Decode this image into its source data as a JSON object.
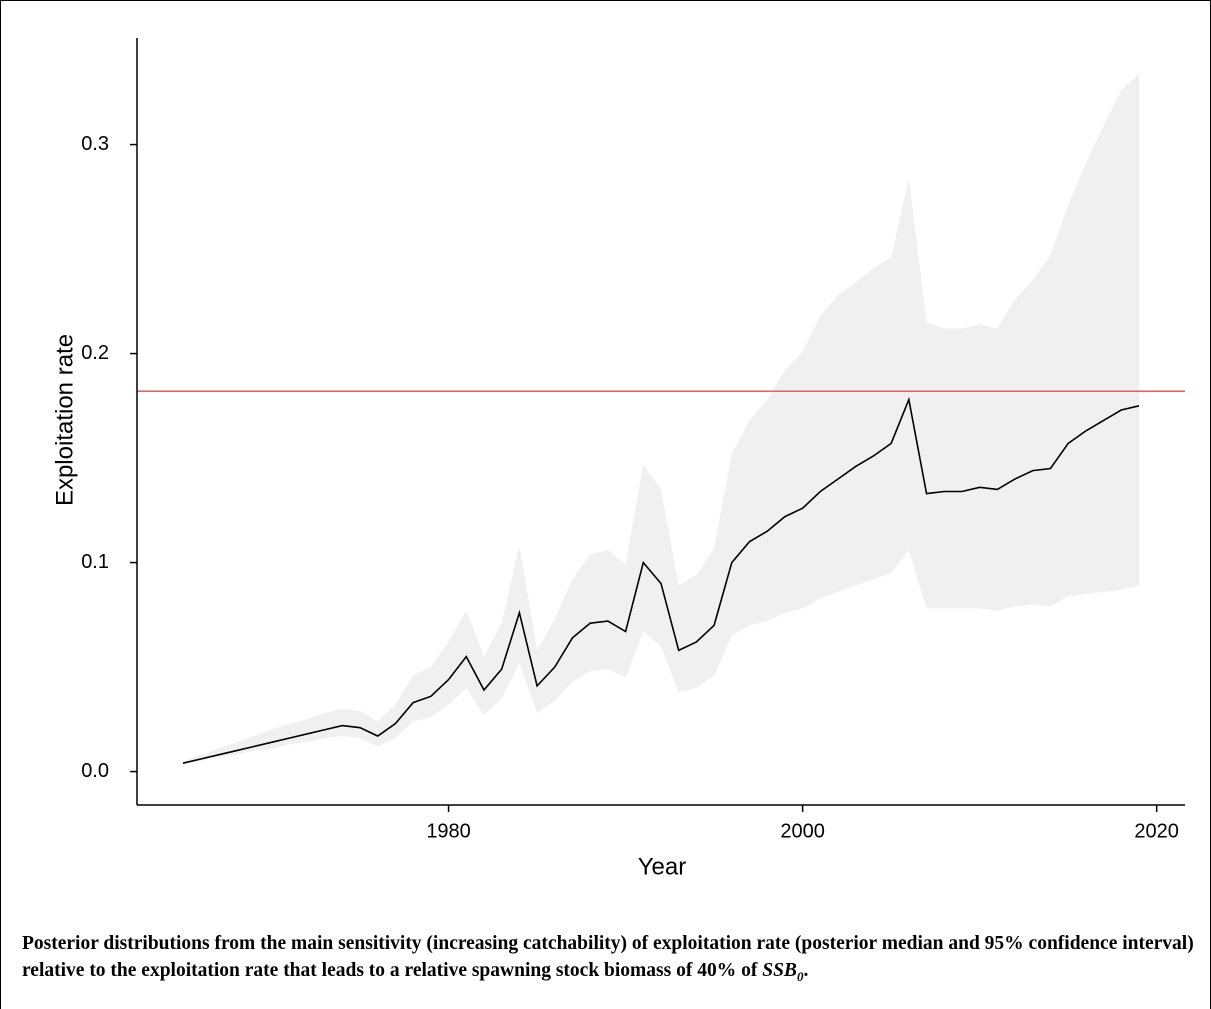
{
  "chart_data": {
    "type": "line",
    "x_label": "Year",
    "y_label": "Exploitation rate",
    "x": [
      1965,
      1966,
      1967,
      1968,
      1969,
      1970,
      1971,
      1972,
      1973,
      1974,
      1975,
      1976,
      1977,
      1978,
      1979,
      1980,
      1981,
      1982,
      1983,
      1984,
      1985,
      1986,
      1987,
      1988,
      1989,
      1990,
      1991,
      1992,
      1993,
      1994,
      1995,
      1996,
      1997,
      1998,
      1999,
      2000,
      2001,
      2002,
      2003,
      2004,
      2005,
      2006,
      2007,
      2008,
      2009,
      2010,
      2011,
      2012,
      2013,
      2014,
      2015,
      2016,
      2017,
      2018,
      2019
    ],
    "values": [
      0.004,
      0.006,
      0.008,
      0.01,
      0.012,
      0.014,
      0.016,
      0.018,
      0.02,
      0.022,
      0.021,
      0.017,
      0.023,
      0.033,
      0.036,
      0.044,
      0.055,
      0.039,
      0.049,
      0.076,
      0.041,
      0.05,
      0.064,
      0.071,
      0.072,
      0.067,
      0.1,
      0.09,
      0.058,
      0.062,
      0.07,
      0.1,
      0.11,
      0.115,
      0.122,
      0.126,
      0.134,
      0.14,
      0.146,
      0.151,
      0.157,
      0.178,
      0.133,
      0.134,
      0.134,
      0.136,
      0.135,
      0.14,
      0.144,
      0.145,
      0.157,
      0.163,
      0.168,
      0.173,
      0.175
    ],
    "lower": [
      0.004,
      0.005,
      0.007,
      0.008,
      0.01,
      0.011,
      0.013,
      0.014,
      0.016,
      0.017,
      0.016,
      0.012,
      0.016,
      0.024,
      0.026,
      0.032,
      0.04,
      0.027,
      0.035,
      0.052,
      0.028,
      0.034,
      0.043,
      0.048,
      0.049,
      0.045,
      0.067,
      0.06,
      0.038,
      0.04,
      0.046,
      0.065,
      0.07,
      0.072,
      0.076,
      0.078,
      0.083,
      0.086,
      0.089,
      0.092,
      0.095,
      0.106,
      0.078,
      0.078,
      0.078,
      0.078,
      0.077,
      0.079,
      0.08,
      0.079,
      0.084,
      0.085,
      0.086,
      0.087,
      0.089
    ],
    "upper": [
      0.005,
      0.008,
      0.011,
      0.014,
      0.017,
      0.02,
      0.023,
      0.025,
      0.028,
      0.03,
      0.029,
      0.024,
      0.032,
      0.046,
      0.05,
      0.062,
      0.077,
      0.055,
      0.071,
      0.108,
      0.058,
      0.073,
      0.092,
      0.104,
      0.106,
      0.099,
      0.147,
      0.135,
      0.089,
      0.094,
      0.107,
      0.152,
      0.168,
      0.178,
      0.192,
      0.201,
      0.218,
      0.228,
      0.234,
      0.241,
      0.246,
      0.284,
      0.215,
      0.212,
      0.212,
      0.214,
      0.212,
      0.226,
      0.235,
      0.247,
      0.271,
      0.291,
      0.309,
      0.326,
      0.334
    ],
    "color": "#000000",
    "band_color": "#f0f0f0",
    "reference_line": 0.182,
    "reference_color": "#d9534f",
    "xlim": [
      1962.4,
      2021.6
    ],
    "ylim": [
      -0.016,
      0.351
    ],
    "xticks": [
      1980,
      2000,
      2020
    ],
    "yticks": [
      {
        "value": 0,
        "label": "0.0"
      },
      0.1,
      0.2,
      0.3
    ],
    "caption": {
      "text": "Posterior distributions from the main sensitivity (increasing catchability) of exploitation rate (posterior median and 95% confidence interval) relative to the exploitation rate that leads to a relative spawning stock biomass of 40% of ",
      "symbol": "SSB",
      "subscript": "0",
      "end": "."
    }
  }
}
